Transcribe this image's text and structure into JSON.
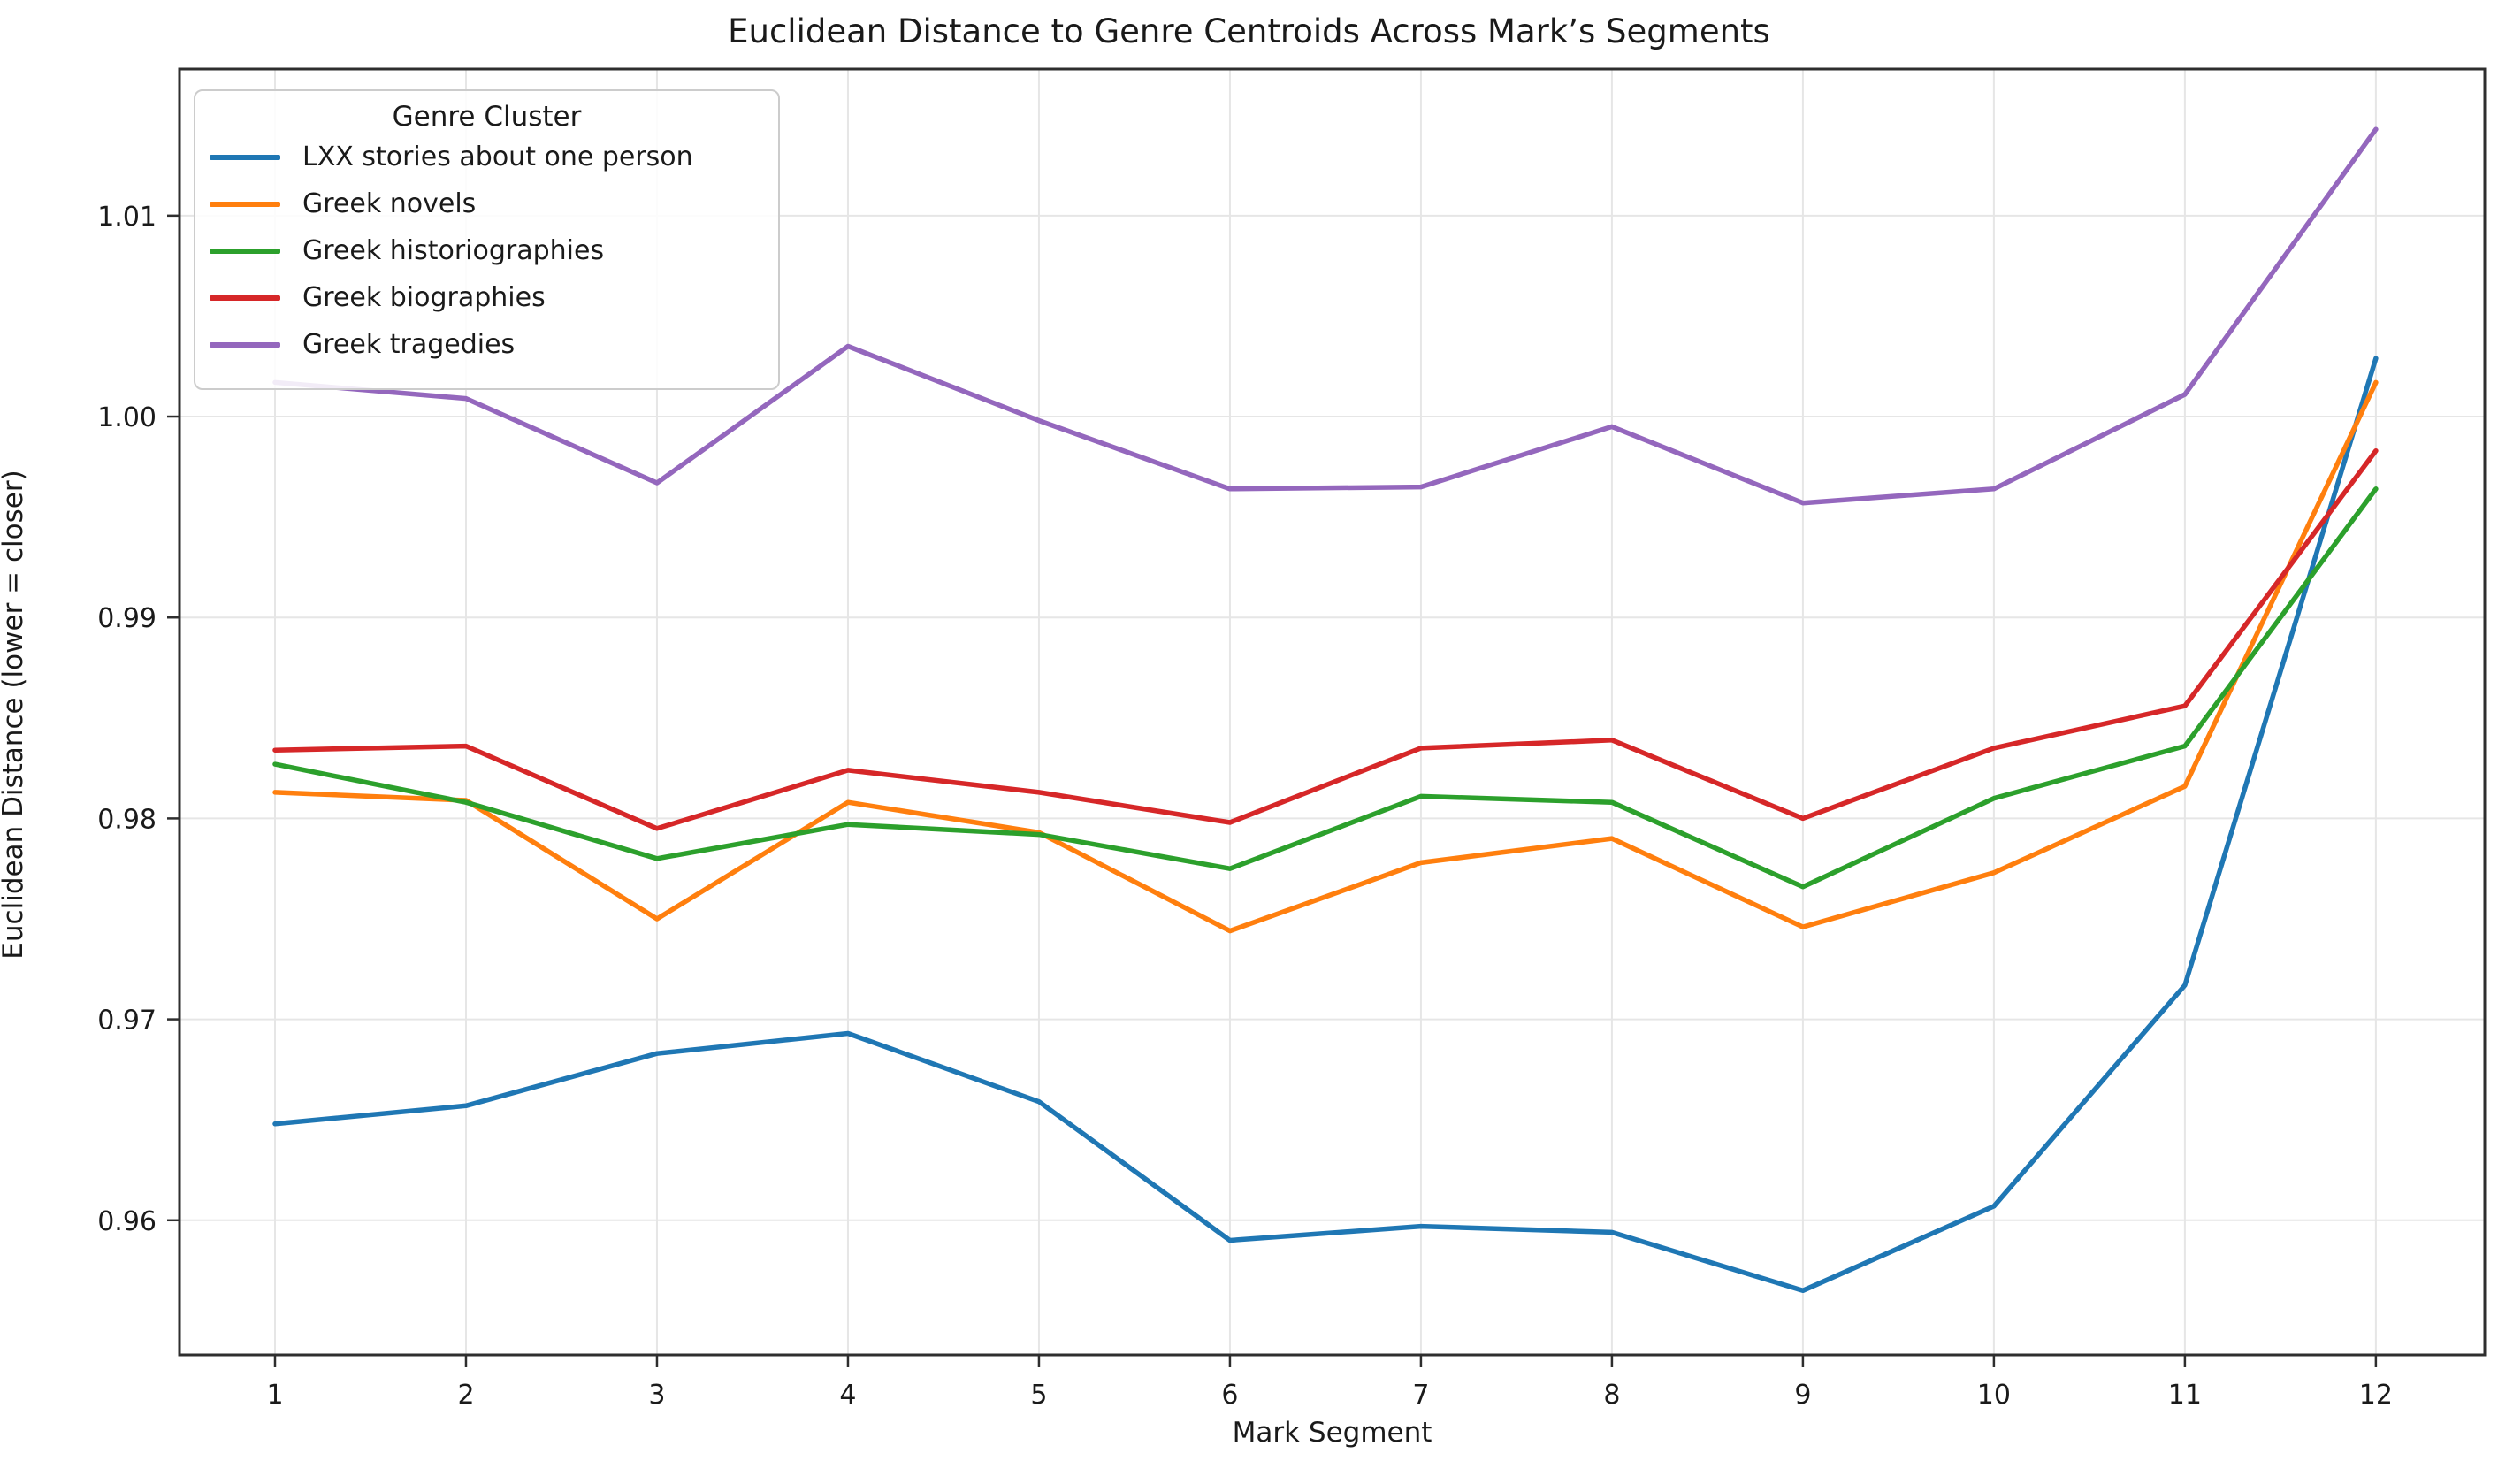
{
  "title": "Euclidean Distance to Genre Centroids Across Mark’s Segments",
  "chart_data": {
    "type": "line",
    "title": "Euclidean Distance to Genre Centroids Across Mark’s Segments",
    "xlabel": "Mark Segment",
    "ylabel": "Euclidean Distance (lower = closer)",
    "x": [
      1,
      2,
      3,
      4,
      5,
      6,
      7,
      8,
      9,
      10,
      11,
      12
    ],
    "xtick_labels": [
      "1",
      "2",
      "3",
      "4",
      "5",
      "6",
      "7",
      "8",
      "9",
      "10",
      "11",
      "12"
    ],
    "yticks": [
      0.96,
      0.97,
      0.98,
      0.99,
      1.0,
      1.01
    ],
    "ytick_labels": [
      "0.96",
      "0.97",
      "0.98",
      "0.99",
      "1.00",
      "1.01"
    ],
    "xlim": [
      0.5,
      12.57
    ],
    "ylim": [
      0.9533,
      1.0173
    ],
    "grid": true,
    "background": "#ffffff",
    "grid_color": "#e6e6e6",
    "spine_color": "#2e2e2e",
    "legend": {
      "title": "Genre Cluster",
      "position": "upper left"
    },
    "series": [
      {
        "name": "LXX stories about one person",
        "color": "#1f77b4",
        "values": [
          0.9648,
          0.9657,
          0.9683,
          0.9693,
          0.9659,
          0.959,
          0.9597,
          0.9594,
          0.9565,
          0.9607,
          0.9717,
          1.0029
        ]
      },
      {
        "name": "Greek novels",
        "color": "#ff7f0e",
        "values": [
          0.9813,
          0.9809,
          0.975,
          0.9808,
          0.9793,
          0.9744,
          0.9778,
          0.979,
          0.9746,
          0.9773,
          0.9816,
          1.0017
        ]
      },
      {
        "name": "Greek historiographies",
        "color": "#2ca02c",
        "values": [
          0.9827,
          0.9808,
          0.978,
          0.9797,
          0.9792,
          0.9775,
          0.9811,
          0.9808,
          0.9766,
          0.981,
          0.9836,
          0.9964
        ]
      },
      {
        "name": "Greek biographies",
        "color": "#d62728",
        "values": [
          0.9834,
          0.9836,
          0.9795,
          0.9824,
          0.9813,
          0.9798,
          0.9835,
          0.9839,
          0.98,
          0.9835,
          0.9856,
          0.9983
        ]
      },
      {
        "name": "Greek tragedies",
        "color": "#9467bd",
        "values": [
          1.0017,
          1.0009,
          0.9967,
          1.0035,
          0.9998,
          0.9964,
          0.9965,
          0.9995,
          0.9957,
          0.9964,
          1.0011,
          1.0143
        ]
      }
    ]
  }
}
